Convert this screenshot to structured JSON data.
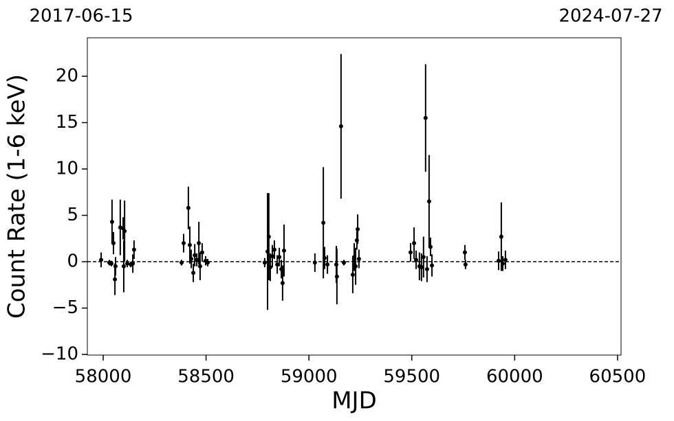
{
  "chart_data": {
    "type": "scatter",
    "start_label": "2017-06-15",
    "end_label": "2024-07-27",
    "xlabel": "MJD",
    "ylabel": "Count Rate (1-6 keV)",
    "xlim": [
      57923,
      60517
    ],
    "ylim": [
      -10.07,
      24.15
    ],
    "xticks": [
      58000,
      58500,
      59000,
      59500,
      60000,
      60500
    ],
    "yticks": [
      {
        "value": -10,
        "label": "−10"
      },
      {
        "value": -5,
        "label": "−5"
      },
      0,
      5,
      10,
      15,
      20
    ],
    "hline": 0,
    "series": [
      {
        "color": "#000000",
        "x": [
          57990,
          58030,
          58040,
          58043,
          58050,
          58057,
          58060,
          58083,
          58097,
          58100,
          58104,
          58117,
          58134,
          58144,
          58150,
          58381,
          58391,
          58414,
          58421,
          58428,
          58438,
          58445,
          58455,
          58465,
          58471,
          58481,
          58498,
          58508,
          58785,
          58799,
          58805,
          58812,
          58822,
          58832,
          58846,
          58856,
          58866,
          58872,
          58879,
          59029,
          59070,
          59076,
          59090,
          59133,
          59136,
          59156,
          59170,
          59213,
          59220,
          59227,
          59233,
          59237,
          59243,
          59494,
          59511,
          59521,
          59537,
          59547,
          59557,
          59567,
          59574,
          59584,
          59591,
          59598,
          59758,
          59761,
          59922,
          59935,
          59942,
          59955
        ],
        "values": [
          0.2,
          -0.1,
          -0.2,
          4.3,
          2.0,
          -1.9,
          -0.5,
          3.7,
          3.6,
          -0.5,
          3.3,
          -0.2,
          -0.3,
          -0.2,
          1.3,
          -0.1,
          2.0,
          5.8,
          1.8,
          0.3,
          -1.2,
          0.7,
          0.2,
          2.0,
          -0.5,
          1.0,
          0.1,
          -0.1,
          -0.1,
          1.1,
          2.7,
          -0.6,
          0.6,
          1.3,
          -0.3,
          0.5,
          -0.8,
          -2.3,
          1.2,
          -0.1,
          4.2,
          0.4,
          -0.3,
          -0.3,
          -1.6,
          14.6,
          -0.1,
          -1.4,
          0.5,
          -0.5,
          2.3,
          3.5,
          0.3,
          1.0,
          2.0,
          0.2,
          -0.5,
          -0.6,
          0.5,
          15.5,
          -0.8,
          6.5,
          1.6,
          -0.4,
          1.0,
          -0.3,
          0.1,
          2.7,
          -0.2,
          0.2
        ],
        "errors": [
          0.8,
          0.3,
          0.3,
          2.4,
          1.2,
          1.7,
          1.0,
          3.0,
          1.2,
          2.8,
          3.3,
          0.4,
          0.3,
          1.0,
          1.0,
          0.3,
          1.0,
          2.3,
          2.0,
          1.0,
          1.0,
          1.2,
          0.7,
          2.3,
          1.5,
          1.0,
          0.5,
          0.4,
          0.5,
          6.3,
          4.7,
          1.5,
          1.2,
          1.0,
          1.0,
          1.0,
          1.0,
          1.9,
          2.8,
          1.0,
          6.0,
          1.2,
          1.0,
          2.0,
          3.0,
          7.8,
          0.3,
          2.0,
          1.5,
          2.0,
          1.0,
          1.6,
          1.0,
          1.0,
          1.7,
          1.0,
          1.5,
          1.5,
          2.2,
          5.8,
          1.4,
          5.0,
          1.0,
          1.2,
          0.8,
          0.5,
          1.0,
          3.7,
          0.8,
          1.0
        ]
      }
    ]
  }
}
